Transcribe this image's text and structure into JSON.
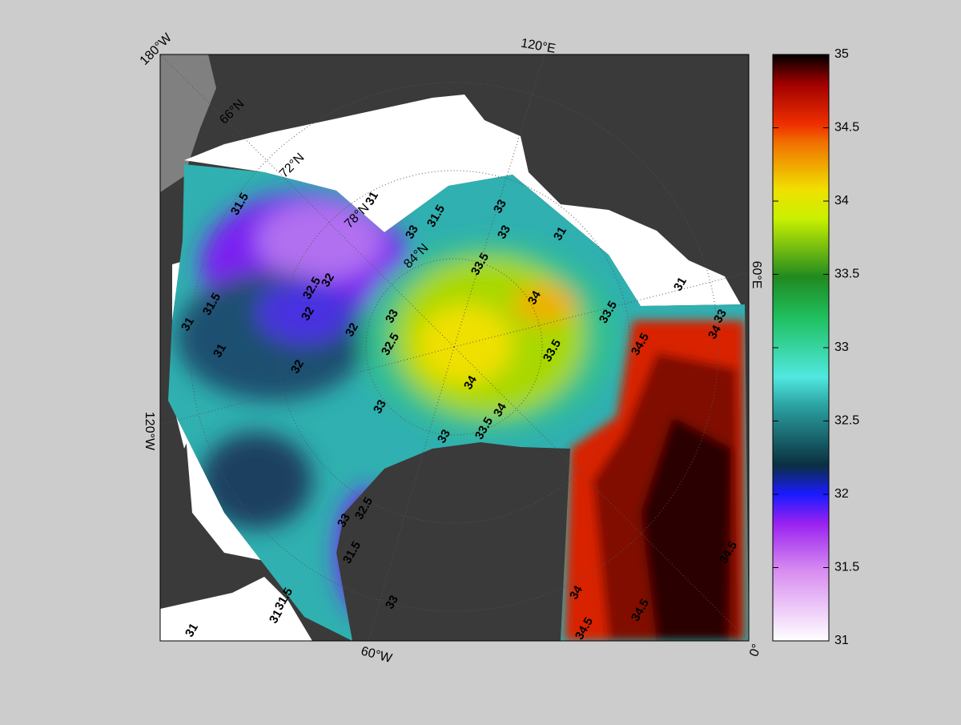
{
  "map": {
    "lon_labels": [
      "180°W",
      "120°E",
      "60°E",
      "0°",
      "60°W",
      "120°W"
    ],
    "lat_labels": [
      "66°N",
      "72°N",
      "78°N",
      "84°N"
    ],
    "contour_labels": [
      31.5,
      31,
      31.5,
      33,
      33,
      33,
      33.5,
      32,
      32.5,
      34,
      33,
      32,
      32,
      32.5,
      31.5,
      31,
      31,
      32,
      33.5,
      34,
      33,
      34,
      33.5,
      33,
      34.5,
      34,
      33.5,
      33,
      32.5,
      33,
      31.5,
      33,
      31.5,
      31,
      31,
      34,
      34.5,
      34.5,
      34.5,
      31,
      31
    ]
  },
  "colorbar": {
    "lim": [
      31,
      35
    ],
    "ticks": [
      31,
      31.5,
      32,
      32.5,
      33,
      33.5,
      34,
      34.5,
      35
    ]
  }
}
